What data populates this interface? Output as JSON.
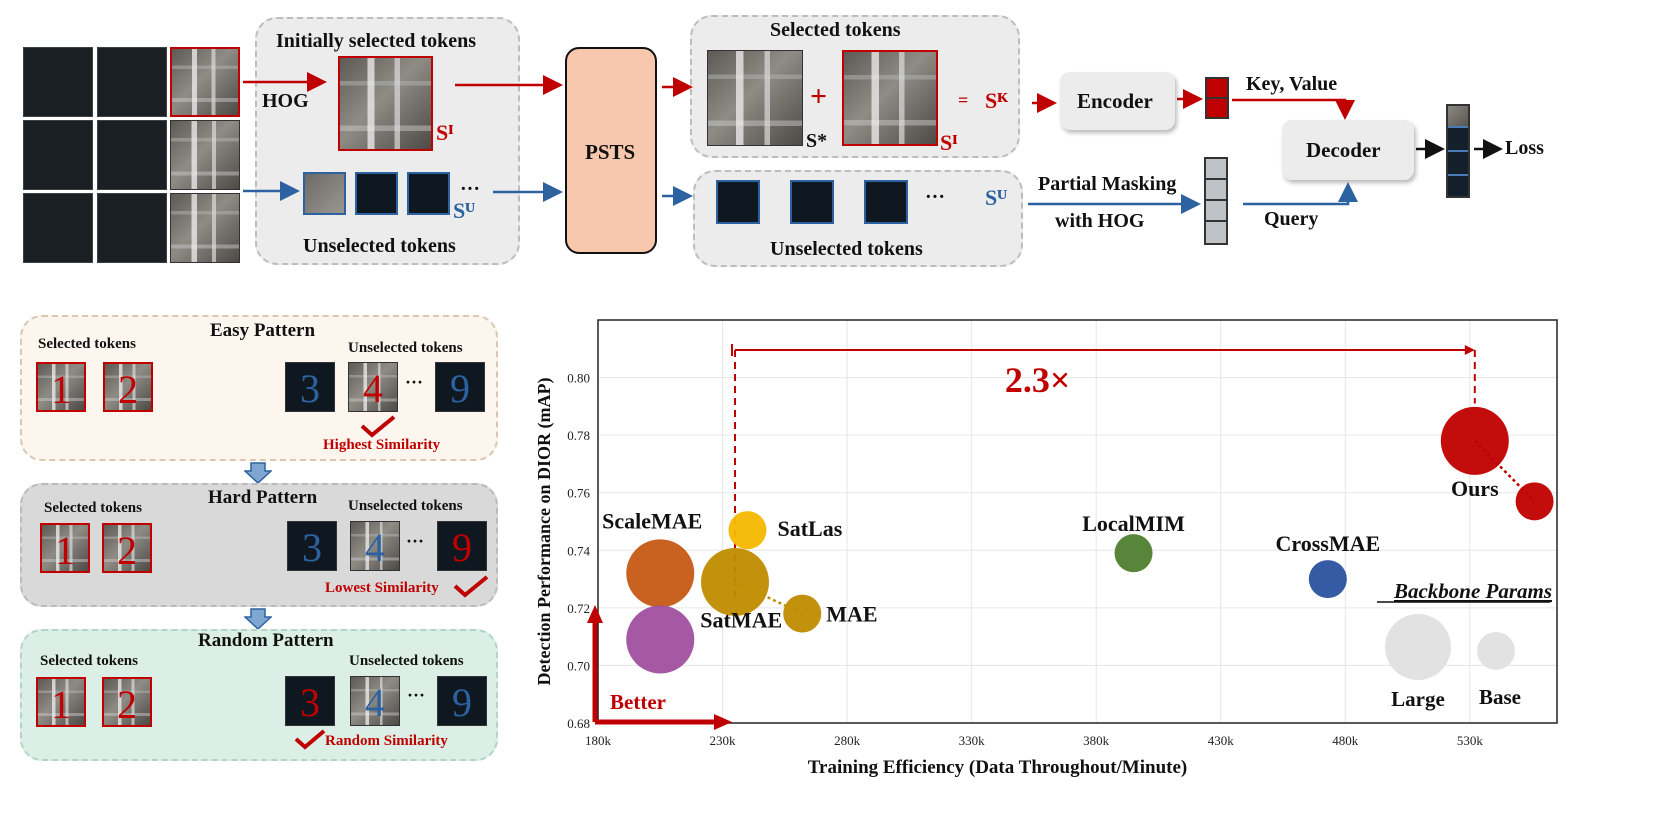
{
  "pipeline": {
    "hog_label": "HOG",
    "initially_selected_title": "Initially selected tokens",
    "unselected_title": "Unselected tokens",
    "s_i": "Sᴵ",
    "s_u": "Sᵁ",
    "ellipsis": "···",
    "psts_label": "PSTS",
    "selected_tokens_title": "Selected tokens",
    "s_star": "S*",
    "plus": "+",
    "equals": "=",
    "s_k": "Sᴷ",
    "unselected_tokens_title": "Unselected tokens",
    "encoder_label": "Encoder",
    "key_value_label": "Key, Value",
    "decoder_label": "Decoder",
    "loss_label": "Loss",
    "partial_masking_label": "Partial Masking",
    "with_hog_label": "with HOG",
    "query_label": "Query"
  },
  "patterns": [
    {
      "title": "Easy Pattern",
      "selected_label": "Selected tokens",
      "unselected_label": "Unselected tokens",
      "selected": [
        "1",
        "2"
      ],
      "unselected": [
        "3",
        "4",
        "9"
      ],
      "note": "Highest Similarity"
    },
    {
      "title": "Hard Pattern",
      "selected_label": "Selected tokens",
      "unselected_label": "Unselected tokens",
      "selected": [
        "1",
        "2"
      ],
      "unselected": [
        "3",
        "4",
        "9"
      ],
      "note": "Lowest Similarity"
    },
    {
      "title": "Random Pattern",
      "selected_label": "Selected tokens",
      "unselected_label": "Unselected tokens",
      "selected": [
        "1",
        "2"
      ],
      "unselected": [
        "3",
        "4",
        "9"
      ],
      "note": "Random Similarity"
    }
  ],
  "colors": {
    "red": "#c00000",
    "blue": "#2d62a0",
    "psts_fill": "#f8c8ae",
    "easy_bg": "#fdf6ee",
    "hard_bg": "#d9d9d9",
    "random_bg": "#dcefe6"
  },
  "chart_data": {
    "type": "scatter",
    "xlabel": "Training Efficiency (Data Throughout/Minute)",
    "ylabel": "Detection Performance on DIOR (mAP)",
    "x_ticks": [
      "180k",
      "230k",
      "280k",
      "330k",
      "380k",
      "430k",
      "480k",
      "530k"
    ],
    "x_tick_values": [
      180,
      230,
      280,
      330,
      380,
      430,
      480,
      530
    ],
    "y_ticks": [
      "0.68",
      "0.70",
      "0.72",
      "0.74",
      "0.76",
      "0.78",
      "0.80"
    ],
    "y_tick_values": [
      0.68,
      0.7,
      0.72,
      0.74,
      0.76,
      0.78,
      0.8
    ],
    "xlim": [
      180,
      565
    ],
    "ylim": [
      0.68,
      0.82
    ],
    "grid": true,
    "points": [
      {
        "label": "ScaleMAE",
        "x": 205,
        "y": 0.732,
        "size": "large",
        "color": "#c65a14"
      },
      {
        "label": "SatMAE",
        "x": 205,
        "y": 0.709,
        "size": "large",
        "color": "#a050a0"
      },
      {
        "label": "SatLas",
        "x": 240,
        "y": 0.747,
        "size": "base",
        "color": "#f4b800"
      },
      {
        "label": "",
        "x": 235,
        "y": 0.729,
        "size": "large",
        "color": "#c08c00"
      },
      {
        "label": "MAE",
        "x": 262,
        "y": 0.718,
        "size": "base",
        "color": "#c08c00"
      },
      {
        "label": "LocalMIM",
        "x": 395,
        "y": 0.739,
        "size": "base",
        "color": "#4e7e2e"
      },
      {
        "label": "CrossMAE",
        "x": 473,
        "y": 0.73,
        "size": "base",
        "color": "#2a52a0"
      },
      {
        "label": "Ours",
        "x": 532,
        "y": 0.778,
        "size": "large",
        "color": "#c00000"
      },
      {
        "label": "",
        "x": 556,
        "y": 0.757,
        "size": "base",
        "color": "#c00000"
      }
    ],
    "annotation": "2.3×",
    "better_label": "Better",
    "legend_title": "Backbone Params",
    "legend_large": "Large",
    "legend_base": "Base"
  }
}
